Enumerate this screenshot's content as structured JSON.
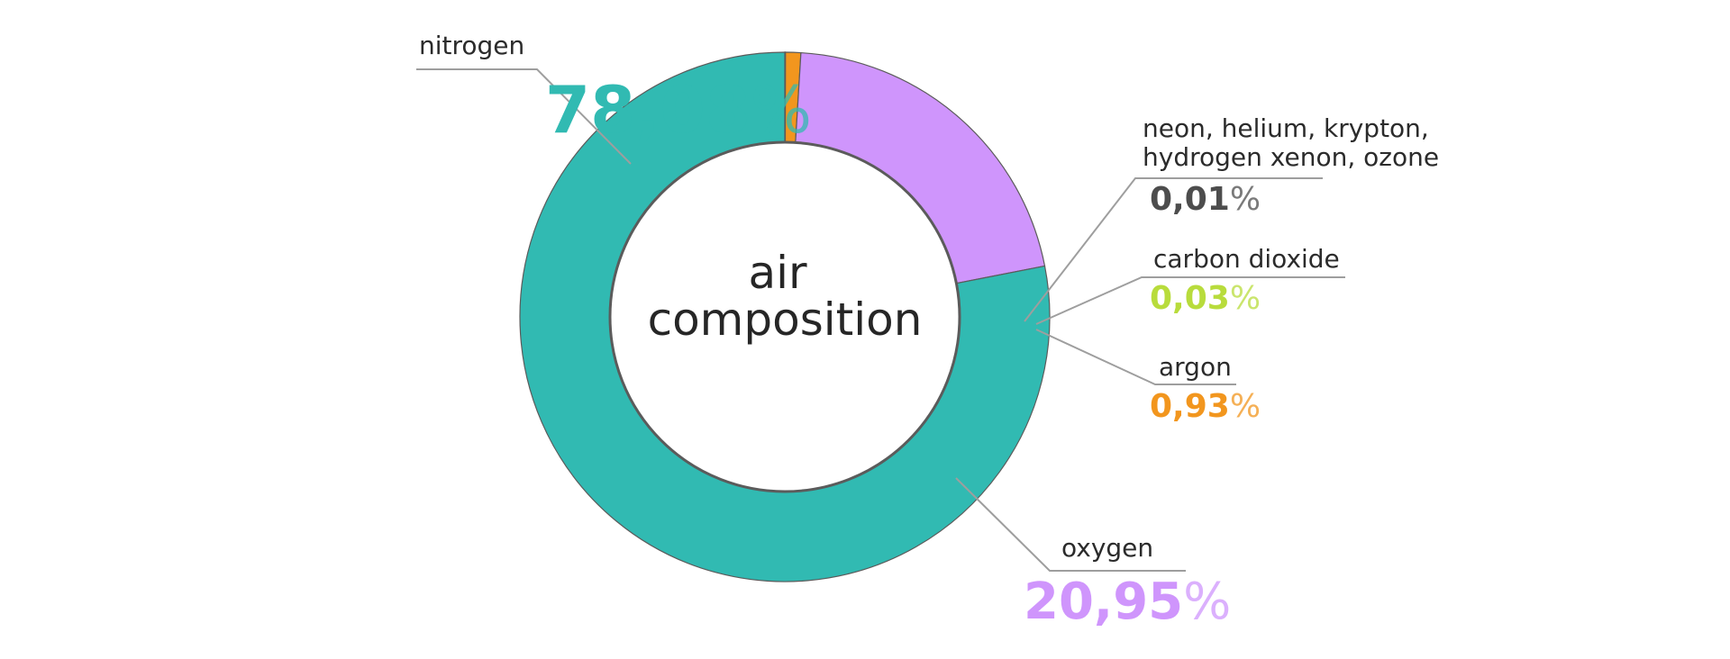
{
  "chart_data": {
    "type": "pie",
    "title": "air composition",
    "title_lines": [
      "air",
      "composition"
    ],
    "start_angle_deg": 90,
    "direction": "clockwise",
    "ring_color": "#5b5b5b",
    "slices": [
      {
        "id": "neon",
        "label_lines": [
          "neon, helium, krypton,",
          "hydrogen xenon, ozone"
        ],
        "value": 0.01,
        "value_text": "0,01",
        "color": "#4d4d4d"
      },
      {
        "id": "co2",
        "label_lines": [
          "carbon dioxide"
        ],
        "value": 0.03,
        "value_text": "0,03",
        "color": "#b8dc3c"
      },
      {
        "id": "argon",
        "label_lines": [
          "argon"
        ],
        "value": 0.93,
        "value_text": "0,93",
        "color": "#f2961e"
      },
      {
        "id": "oxygen",
        "label_lines": [
          "oxygen"
        ],
        "value": 20.95,
        "value_text": "20,95",
        "color": "#cf95fc"
      },
      {
        "id": "nitrogen",
        "label_lines": [
          "nitrogen"
        ],
        "value": 78.08,
        "value_text": "78,08",
        "color": "#31bab2"
      }
    ],
    "percent_sign": "%"
  }
}
